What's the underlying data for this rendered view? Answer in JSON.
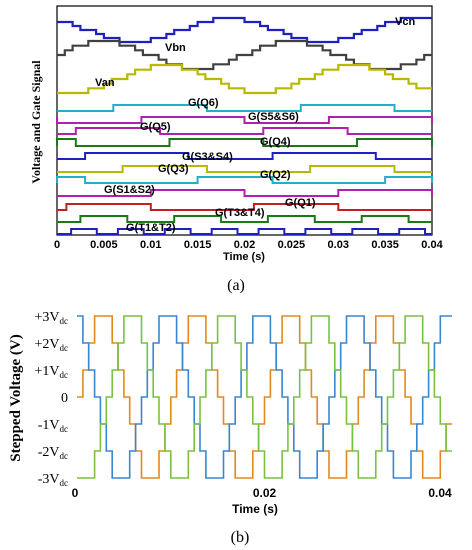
{
  "chart_data": [
    {
      "type": "line",
      "caption": "(a)",
      "xlabel": "Time (s)",
      "ylabel": "Voltage and Gate Signal",
      "xlim": [
        0,
        0.04
      ],
      "x_ticks": [
        "0",
        "0.005",
        "0.01",
        "0.015",
        "0.02",
        "0.025",
        "0.03",
        "0.035",
        "0.04"
      ],
      "grid": false,
      "series": [
        {
          "name": "Vcn",
          "color": "#2020c0",
          "kind": "stepped-sine",
          "phase_deg": 120
        },
        {
          "name": "Vbn",
          "color": "#404040",
          "kind": "stepped-sine",
          "phase_deg": 0
        },
        {
          "name": "Van",
          "color": "#b8b800",
          "kind": "stepped-sine",
          "phase_deg": 240
        },
        {
          "name": "G(Q6)",
          "color": "#20b0c8",
          "kind": "gate"
        },
        {
          "name": "G(S5&S6)",
          "color": "#b020b0",
          "kind": "gate"
        },
        {
          "name": "G(Q5)",
          "color": "#b020b0",
          "kind": "gate"
        },
        {
          "name": "G(Q4)",
          "color": "#1a7a1a",
          "kind": "gate"
        },
        {
          "name": "G(S3&S4)",
          "color": "#2020c0",
          "kind": "gate"
        },
        {
          "name": "G(Q3)",
          "color": "#b8b800",
          "kind": "gate"
        },
        {
          "name": "G(Q2)",
          "color": "#20b0c8",
          "kind": "gate"
        },
        {
          "name": "G(S1&S2)",
          "color": "#b020b0",
          "kind": "gate"
        },
        {
          "name": "G(Q1)",
          "color": "#c02020",
          "kind": "gate"
        },
        {
          "name": "G(T3&T4)",
          "color": "#1a7a1a",
          "kind": "gate"
        },
        {
          "name": "G(T1&T2)",
          "color": "#2020c0",
          "kind": "gate"
        }
      ],
      "series_labels": [
        "Vcn",
        "Vbn",
        "Van",
        "G(Q6)",
        "G(S5&S6)",
        "G(Q5)",
        "G(Q4)",
        "G(S3&S4)",
        "G(Q3)",
        "G(Q2)",
        "G(S1&S2)",
        "G(Q1)",
        "G(T3&T4)",
        "G(T1&T2)"
      ]
    },
    {
      "type": "line",
      "caption": "(b)",
      "xlabel": "Time (s)",
      "ylabel": "Stepped Voltage (V)",
      "xlim": [
        0,
        0.04
      ],
      "ylim": [
        -3,
        3
      ],
      "x_ticks": [
        "0",
        "0.02",
        "0.04"
      ],
      "y_ticks": [
        {
          "value": 3,
          "label": "+3V",
          "sub": "dc"
        },
        {
          "value": 2,
          "label": "+2V",
          "sub": "dc"
        },
        {
          "value": 1,
          "label": "+1V",
          "sub": "dc"
        },
        {
          "value": 0,
          "label": "0",
          "sub": ""
        },
        {
          "value": -1,
          "label": "-1V",
          "sub": "dc"
        },
        {
          "value": -2,
          "label": "-2V",
          "sub": "dc"
        },
        {
          "value": -3,
          "label": "-3V",
          "sub": "dc"
        }
      ],
      "period_s": 0.01,
      "levels": [
        0,
        1,
        2,
        3,
        3,
        3,
        2,
        1,
        0,
        -1,
        -2,
        -3,
        -3,
        -3,
        -2,
        -1
      ],
      "series": [
        {
          "color": "#e08a1e",
          "phase_deg": 0
        },
        {
          "color": "#3a86d0",
          "phase_deg": 120
        },
        {
          "color": "#7ac142",
          "phase_deg": 240
        }
      ]
    }
  ]
}
